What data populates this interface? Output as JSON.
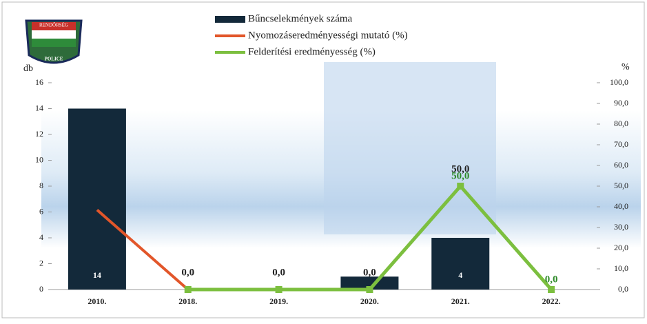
{
  "logo": {
    "top": "RENDŐRSÉG",
    "bottom": "POLICE"
  },
  "chart_data": {
    "type": "bar-line",
    "y_label": "db",
    "y2_label": "%",
    "categories": [
      "2010.",
      "2018.",
      "2019.",
      "2020.",
      "2021.",
      "2022."
    ],
    "series": [
      {
        "name": "Bűncselekmények száma",
        "type": "bar",
        "color": "#13293a",
        "values": [
          14,
          0,
          0,
          1,
          4,
          0
        ]
      },
      {
        "name": "Nyomozáseredményességi mutató (%)",
        "type": "line",
        "axis": "y2",
        "color": "#e2562a",
        "values": [
          38.5,
          0,
          0,
          0,
          50,
          0
        ],
        "value_labels": [
          null,
          "0,0",
          "0,0",
          "0,0",
          "50,0",
          null
        ]
      },
      {
        "name": "Felderítési eredményesség (%)",
        "type": "line",
        "axis": "y2",
        "color": "#7cbf3f",
        "values": [
          null,
          0,
          0,
          0,
          50,
          0
        ],
        "value_labels": [
          null,
          null,
          null,
          null,
          "50,0",
          "0,0"
        ]
      }
    ],
    "ylim": [
      0,
      16
    ],
    "yticks": [
      0,
      2,
      4,
      6,
      8,
      10,
      12,
      14,
      16
    ],
    "y2lim": [
      0,
      100
    ],
    "y2ticks": [
      {
        "value": 0,
        "label": "0,0"
      },
      {
        "value": 10,
        "label": "10,0"
      },
      {
        "value": 20,
        "label": "20,0"
      },
      {
        "value": 30,
        "label": "30,0"
      },
      {
        "value": 40,
        "label": "40,0"
      },
      {
        "value": 50,
        "label": "50,0"
      },
      {
        "value": 60,
        "label": "60,0"
      },
      {
        "value": 70,
        "label": "70,0"
      },
      {
        "value": 80,
        "label": "80,0"
      },
      {
        "value": 90,
        "label": "90,0"
      },
      {
        "value": 100,
        "label": "100,0"
      }
    ]
  }
}
